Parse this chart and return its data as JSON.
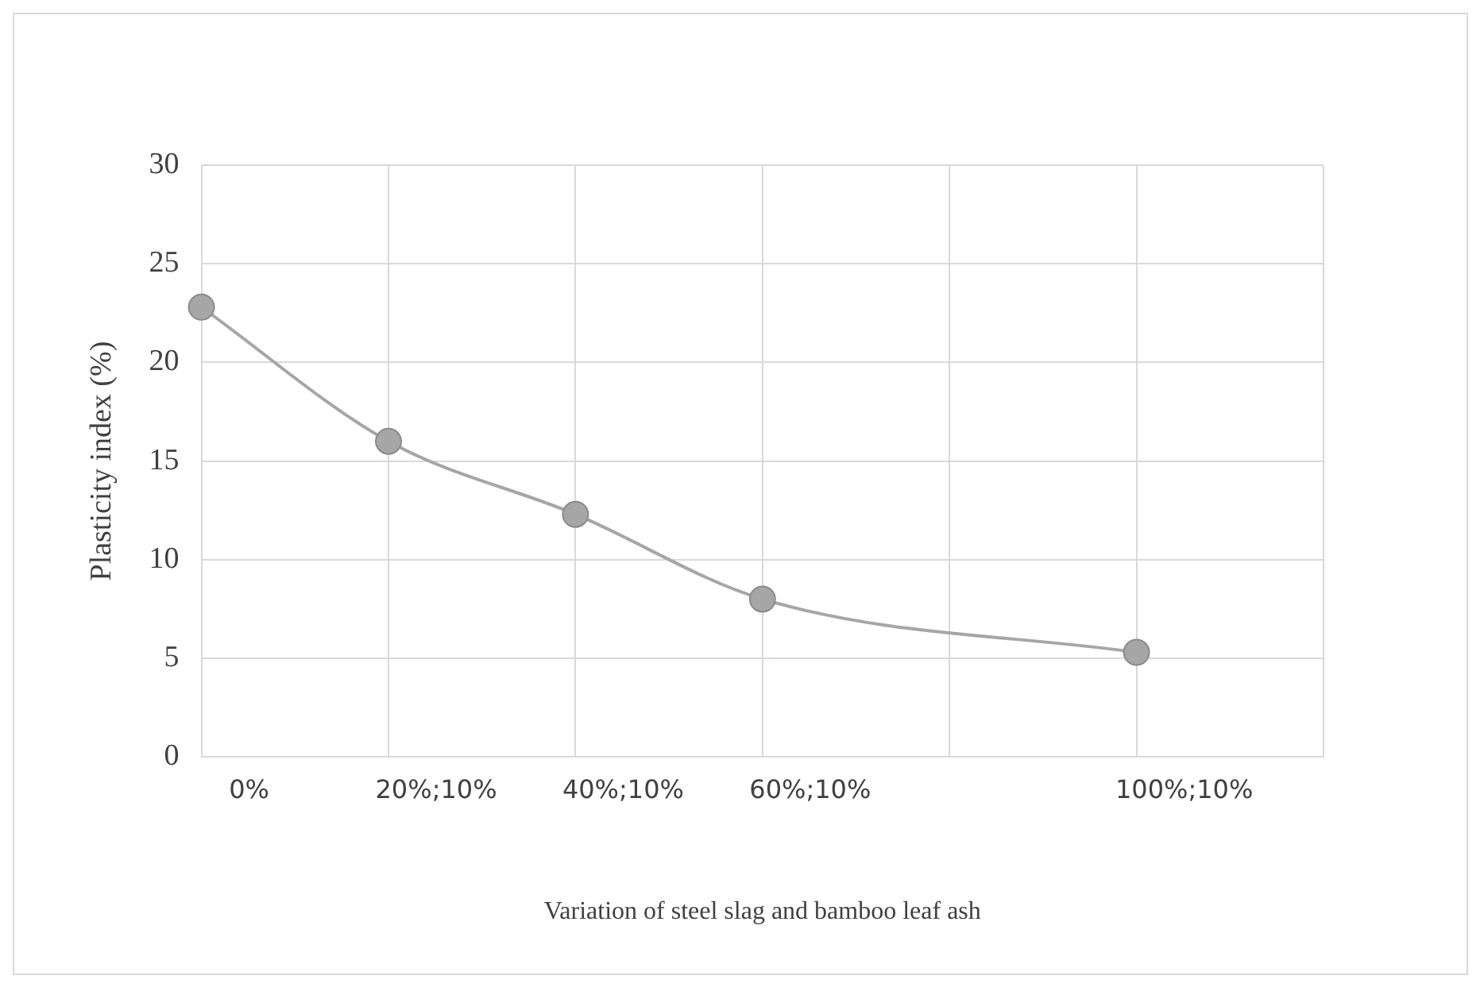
{
  "chart_data": {
    "type": "line",
    "xlabel": "Variation of steel slag and bamboo leaf ash",
    "ylabel": "Plasticity index (%)",
    "categories": [
      "0%",
      "20%;10%",
      "40%;10%",
      "60%;10%",
      null,
      "100%;10%",
      null
    ],
    "series": [
      {
        "color": "#a6a6a6",
        "values": [
          22.8,
          16.0,
          12.3,
          8.0,
          null,
          5.3,
          null
        ]
      }
    ],
    "ylim": [
      0,
      30
    ],
    "yticks": [
      0,
      5,
      10,
      15,
      20,
      25,
      30
    ],
    "grid": true,
    "legend": false,
    "marker": "circle",
    "line_style": "solid"
  }
}
